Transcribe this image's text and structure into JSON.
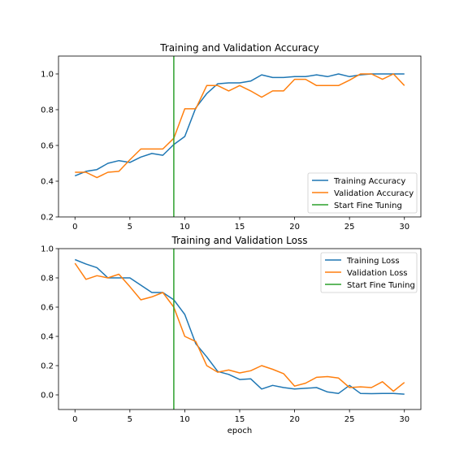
{
  "chart_data": [
    {
      "type": "line",
      "title": "Training and Validation Accuracy",
      "xlabel": "",
      "ylabel": "",
      "xlim": [
        -1.5,
        31.5
      ],
      "ylim": [
        0.2,
        1.1
      ],
      "xticks": [
        0,
        5,
        10,
        15,
        20,
        25,
        30
      ],
      "xtick_labels": [
        "0",
        "5",
        "10",
        "15",
        "20",
        "25",
        "30"
      ],
      "yticks": [
        0.2,
        0.4,
        0.6,
        0.8,
        1.0
      ],
      "ytick_labels": [
        "0.2",
        "0.4",
        "0.6",
        "0.8",
        "1.0"
      ],
      "legend": "lower-right",
      "grid": false,
      "x": [
        0,
        1,
        2,
        3,
        4,
        5,
        6,
        7,
        8,
        9,
        10,
        11,
        12,
        13,
        14,
        15,
        16,
        17,
        18,
        19,
        20,
        21,
        22,
        23,
        24,
        25,
        26,
        27,
        28,
        29,
        30
      ],
      "series": [
        {
          "name": "Training Accuracy",
          "color": "#1f77b4",
          "values": [
            0.43,
            0.455,
            0.465,
            0.5,
            0.515,
            0.505,
            0.535,
            0.555,
            0.545,
            0.605,
            0.65,
            0.81,
            0.89,
            0.945,
            0.95,
            0.95,
            0.96,
            0.995,
            0.98,
            0.98,
            0.985,
            0.985,
            0.995,
            0.985,
            1.0,
            0.985,
            0.995,
            1.0,
            1.0,
            1.0,
            1.0
          ]
        },
        {
          "name": "Validation Accuracy",
          "color": "#ff7f0e",
          "values": [
            0.45,
            0.45,
            0.42,
            0.45,
            0.455,
            0.52,
            0.58,
            0.58,
            0.58,
            0.64,
            0.805,
            0.805,
            0.935,
            0.935,
            0.905,
            0.935,
            0.905,
            0.87,
            0.905,
            0.905,
            0.97,
            0.97,
            0.935,
            0.935,
            0.935,
            0.965,
            1.0,
            1.0,
            0.97,
            1.0,
            0.935
          ]
        }
      ],
      "vline": {
        "name": "Start Fine Tuning",
        "x": 9,
        "color": "#2ca02c"
      }
    },
    {
      "type": "line",
      "title": "Training and Validation Loss",
      "xlabel": "epoch",
      "ylabel": "",
      "xlim": [
        -1.5,
        31.5
      ],
      "ylim": [
        -0.1,
        1.0
      ],
      "xticks": [
        0,
        5,
        10,
        15,
        20,
        25,
        30
      ],
      "xtick_labels": [
        "0",
        "5",
        "10",
        "15",
        "20",
        "25",
        "30"
      ],
      "yticks": [
        0.0,
        0.2,
        0.4,
        0.6,
        0.8,
        1.0
      ],
      "ytick_labels": [
        "0.0",
        "0.2",
        "0.4",
        "0.6",
        "0.8",
        "1.0"
      ],
      "legend": "upper-right",
      "grid": false,
      "x": [
        0,
        1,
        2,
        3,
        4,
        5,
        6,
        7,
        8,
        9,
        10,
        11,
        12,
        13,
        14,
        15,
        16,
        17,
        18,
        19,
        20,
        21,
        22,
        23,
        24,
        25,
        26,
        27,
        28,
        29,
        30
      ],
      "series": [
        {
          "name": "Training Loss",
          "color": "#1f77b4",
          "values": [
            0.925,
            0.895,
            0.87,
            0.8,
            0.8,
            0.8,
            0.75,
            0.7,
            0.7,
            0.65,
            0.55,
            0.35,
            0.26,
            0.16,
            0.14,
            0.105,
            0.11,
            0.04,
            0.065,
            0.05,
            0.04,
            0.045,
            0.05,
            0.02,
            0.01,
            0.065,
            0.01,
            0.008,
            0.01,
            0.01,
            0.005
          ]
        },
        {
          "name": "Validation Loss",
          "color": "#ff7f0e",
          "values": [
            0.9,
            0.79,
            0.815,
            0.8,
            0.825,
            0.74,
            0.65,
            0.67,
            0.7,
            0.6,
            0.4,
            0.365,
            0.2,
            0.155,
            0.17,
            0.15,
            0.165,
            0.2,
            0.175,
            0.145,
            0.06,
            0.08,
            0.12,
            0.125,
            0.115,
            0.05,
            0.055,
            0.05,
            0.09,
            0.025,
            0.085
          ]
        }
      ],
      "vline": {
        "name": "Start Fine Tuning",
        "x": 9,
        "color": "#2ca02c"
      }
    }
  ]
}
